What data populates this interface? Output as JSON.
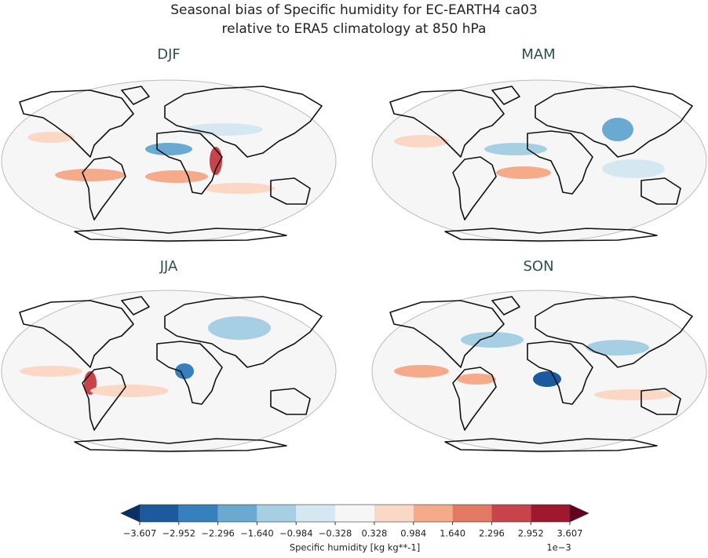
{
  "title": [
    "Seasonal bias of Specific humidity for EC-EARTH4 ca03",
    "relative to ERA5 climatology at 850 hPa"
  ],
  "panels": [
    {
      "title": "DJF"
    },
    {
      "title": "MAM"
    },
    {
      "title": "JJA"
    },
    {
      "title": "SON"
    }
  ],
  "colorbar": {
    "ticks": [
      {
        "value": -3.607,
        "label": "−3.607"
      },
      {
        "value": -2.952,
        "label": "−2.952"
      },
      {
        "value": -2.296,
        "label": "−2.296"
      },
      {
        "value": -1.64,
        "label": "−1.640"
      },
      {
        "value": -0.984,
        "label": "−0.984"
      },
      {
        "value": -0.328,
        "label": "−0.328"
      },
      {
        "value": 0.328,
        "label": "0.328"
      },
      {
        "value": 0.984,
        "label": "0.984"
      },
      {
        "value": 1.64,
        "label": "1.640"
      },
      {
        "value": 2.296,
        "label": "2.296"
      },
      {
        "value": 2.952,
        "label": "2.952"
      },
      {
        "value": 3.607,
        "label": "3.607"
      }
    ],
    "colors": [
      "#1c5a9e",
      "#3680bd",
      "#6aaad2",
      "#a7cfe4",
      "#d5e7f1",
      "#f6f6f6",
      "#fbd8c5",
      "#f5aa89",
      "#e27a63",
      "#c8434a",
      "#a0182d"
    ],
    "extend_colors": [
      "#0b3065",
      "#67001f"
    ],
    "label": "Specific humidity [kg kg**-1]",
    "offset": "1e−3"
  }
}
